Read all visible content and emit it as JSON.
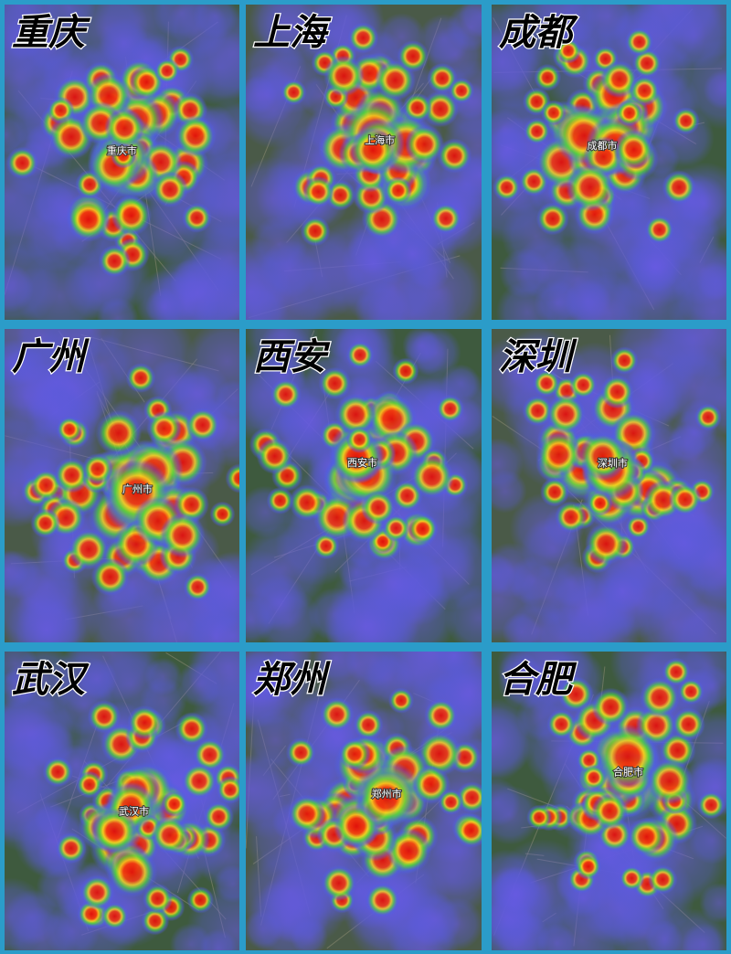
{
  "panels": [
    {
      "city": "重庆",
      "center_label": "重庆市"
    },
    {
      "city": "上海",
      "center_label": "上海市"
    },
    {
      "city": "成都",
      "center_label": "成都市"
    },
    {
      "city": "广州",
      "center_label": "广州市"
    },
    {
      "city": "西安",
      "center_label": "西安市"
    },
    {
      "city": "深圳",
      "center_label": "深圳市"
    },
    {
      "city": "武汉",
      "center_label": "武汉市"
    },
    {
      "city": "郑州",
      "center_label": "郑州市"
    },
    {
      "city": "合肥",
      "center_label": "合肥市"
    }
  ]
}
